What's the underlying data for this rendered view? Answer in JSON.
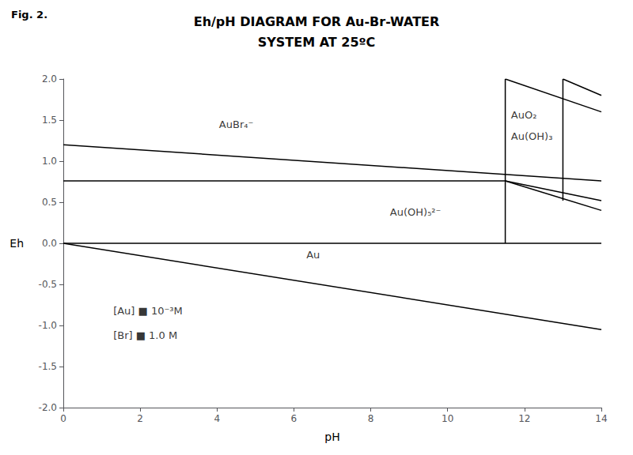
{
  "chart_data": {
    "type": "line",
    "title": "Eh/pH DIAGRAM FOR Au-Br-WATER",
    "subtitle": "SYSTEM AT 25ºC",
    "fig_label": "Fig. 2.",
    "xlabel": "pH",
    "ylabel": "Eh",
    "xlim": [
      0,
      14
    ],
    "ylim": [
      -2.0,
      2.0
    ],
    "xticks": [
      0,
      2,
      4,
      6,
      8,
      10,
      12,
      14
    ],
    "yticks": [
      {
        "value": -2.0,
        "label": "-2.0"
      },
      {
        "value": -1.5,
        "label": "-1.5"
      },
      {
        "value": -1.0,
        "label": "-1.0"
      },
      {
        "value": -0.5,
        "label": "-0.5"
      },
      {
        "value": 0.0,
        "label": "0.0"
      },
      {
        "value": 0.5,
        "label": "0.5"
      },
      {
        "value": 1.0,
        "label": "1.0"
      },
      {
        "value": 1.5,
        "label": "1.5"
      },
      {
        "value": 2.0,
        "label": "2.0"
      }
    ],
    "grid": false,
    "color": "#000000",
    "series": [
      {
        "x": [
          0,
          14
        ],
        "values": [
          1.2,
          0.76
        ]
      },
      {
        "x": [
          0,
          11.5
        ],
        "values": [
          0.76,
          0.76
        ]
      },
      {
        "x": [
          0,
          14
        ],
        "values": [
          0.0,
          0.0
        ]
      },
      {
        "x": [
          0,
          14
        ],
        "values": [
          0.0,
          -1.05
        ]
      },
      {
        "x": [
          11.5,
          11.5
        ],
        "values": [
          0.0,
          2.0
        ]
      },
      {
        "x": [
          13.0,
          13.0
        ],
        "values": [
          0.52,
          2.0
        ]
      },
      {
        "x": [
          11.5,
          14
        ],
        "values": [
          2.0,
          1.6
        ]
      },
      {
        "x": [
          13.0,
          14
        ],
        "values": [
          2.0,
          1.8
        ]
      },
      {
        "x": [
          11.5,
          14
        ],
        "values": [
          0.76,
          0.4
        ]
      },
      {
        "x": [
          11.5,
          14
        ],
        "values": [
          0.76,
          0.52
        ]
      }
    ],
    "annotations": [
      {
        "text": "AuBr₄⁻",
        "x": 4.5,
        "y": 1.45,
        "align": "center"
      },
      {
        "text": "Au",
        "x": 6.5,
        "y": -0.14,
        "align": "center"
      },
      {
        "text": "Au(OH)₅²⁻",
        "x": 8.5,
        "y": 0.38,
        "align": "left"
      },
      {
        "text": "AuO₂",
        "x": 11.65,
        "y": 1.56,
        "align": "left"
      },
      {
        "text": "Au(OH)₃",
        "x": 11.65,
        "y": 1.3,
        "align": "left"
      },
      {
        "text": "[Au] ■ 10⁻³M",
        "x": 1.3,
        "y": -0.82,
        "align": "left"
      },
      {
        "text": "[Br] ■ 1.0 M",
        "x": 1.3,
        "y": -1.12,
        "align": "left"
      }
    ]
  }
}
